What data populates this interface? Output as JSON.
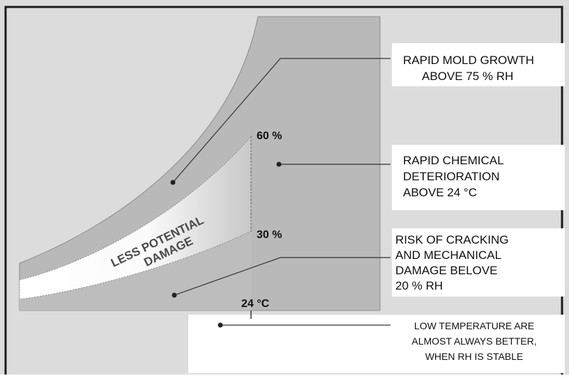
{
  "diagram": {
    "annotations": {
      "mold": {
        "line1": "RAPID MOLD GROWTH",
        "line2": "ABOVE 75 % RH"
      },
      "chemical": {
        "line1": "RAPID CHEMICAL",
        "line2": "DETERIORATION",
        "line3": "ABOVE 24 °C"
      },
      "cracking": {
        "line1": "RISK OF CRACKING",
        "line2": "AND MECHANICAL",
        "line3": "DAMAGE BELOVE",
        "line4": "20 % RH"
      },
      "low_temp": {
        "line1": "LOW TEMPERATURE ARE",
        "line2": "ALMOST ALWAYS BETTER,",
        "line3": "WHEN RH IS STABLE"
      }
    },
    "band_labels": {
      "upper_rh": "60 %",
      "lower_rh": "30 %",
      "temperature_mark": "24 °C"
    },
    "safe_zone": {
      "line1": "LESS POTENTIAL",
      "line2": "DAMAGE"
    },
    "colors": {
      "gray_zone": "#b9b9b9",
      "background": "#dcdcdc",
      "safe_zone_light": "#ffffff",
      "frame": "#1a1a1a",
      "leader_line": "#333333"
    }
  }
}
